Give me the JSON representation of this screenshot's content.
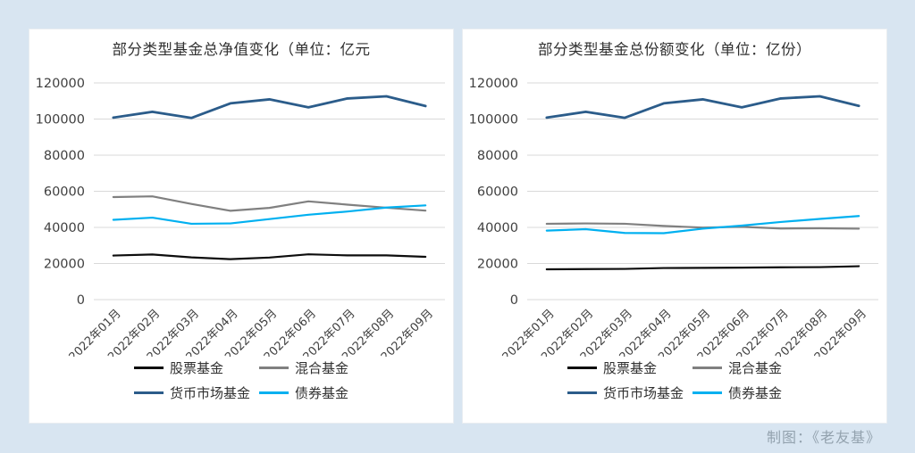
{
  "page": {
    "background_color": "#d8e5f1",
    "footer_credit": "制图：《老友基》"
  },
  "colors": {
    "stock_fund": "#0d0d0d",
    "hybrid_fund": "#808080",
    "money_market_fund": "#2b5c8a",
    "bond_fund": "#00b0f0",
    "gridline": "#d9d9d9",
    "axis_text": "#404040"
  },
  "chart_data": [
    {
      "type": "line",
      "title": "部分类型基金总净值变化（单位：亿元",
      "categories": [
        "2022年01月",
        "2022年02月",
        "2022年03月",
        "2022年04月",
        "2022年05月",
        "2022年06月",
        "2022年07月",
        "2022年08月",
        "2022年09月"
      ],
      "series": [
        {
          "key": "stock_fund",
          "name": "股票基金",
          "values": [
            24400,
            25000,
            23400,
            22400,
            23300,
            25100,
            24500,
            24500,
            23700
          ]
        },
        {
          "key": "hybrid_fund",
          "name": "混合基金",
          "values": [
            56800,
            57200,
            53000,
            49200,
            50800,
            54400,
            52600,
            50900,
            49300
          ]
        },
        {
          "key": "money_market_fund",
          "name": "货币市场基金",
          "values": [
            100800,
            104000,
            100600,
            108700,
            110900,
            106500,
            111400,
            112600,
            107200
          ]
        },
        {
          "key": "bond_fund",
          "name": "债券基金",
          "values": [
            44200,
            45400,
            42000,
            42200,
            44600,
            47000,
            48800,
            51000,
            52200
          ]
        }
      ],
      "ylim": [
        0,
        120000
      ],
      "yticks": [
        0,
        20000,
        40000,
        60000,
        80000,
        100000,
        120000
      ],
      "grid": true,
      "legend_position": "bottom"
    },
    {
      "type": "line",
      "title": "部分类型基金总份额变化（单位：亿份）",
      "categories": [
        "2022年01月",
        "2022年02月",
        "2022年03月",
        "2022年04月",
        "2022年05月",
        "2022年06月",
        "2022年07月",
        "2022年08月",
        "2022年09月"
      ],
      "series": [
        {
          "key": "stock_fund",
          "name": "股票基金",
          "values": [
            16800,
            16900,
            17000,
            17500,
            17600,
            17700,
            17900,
            18000,
            18500
          ]
        },
        {
          "key": "hybrid_fund",
          "name": "混合基金",
          "values": [
            42000,
            42200,
            42000,
            40800,
            39900,
            40300,
            39400,
            39500,
            39300
          ]
        },
        {
          "key": "money_market_fund",
          "name": "货币市场基金",
          "values": [
            100800,
            104000,
            100700,
            108700,
            110900,
            106500,
            111400,
            112600,
            107300
          ]
        },
        {
          "key": "bond_fund",
          "name": "债券基金",
          "values": [
            38200,
            39000,
            36900,
            36800,
            39300,
            41000,
            43000,
            44700,
            46300
          ]
        }
      ],
      "ylim": [
        0,
        120000
      ],
      "yticks": [
        0,
        20000,
        40000,
        60000,
        80000,
        100000,
        120000
      ],
      "grid": true,
      "legend_position": "bottom"
    }
  ]
}
